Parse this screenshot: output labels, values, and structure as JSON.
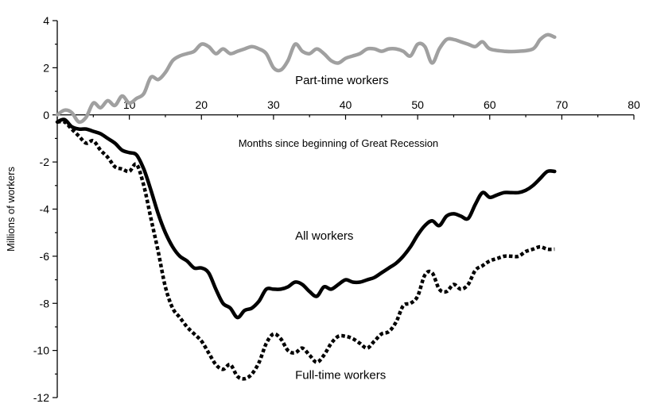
{
  "chart_data": {
    "type": "line",
    "title": "",
    "xlabel": "Months since beginning of Great Recession",
    "ylabel": "Millions of workers",
    "xlim": [
      0,
      80
    ],
    "ylim": [
      -12,
      4
    ],
    "x_ticks": [
      10,
      20,
      30,
      40,
      50,
      60,
      70,
      80
    ],
    "y_ticks": [
      4,
      2,
      0,
      -2,
      -4,
      -6,
      -8,
      -10,
      -12
    ],
    "grid": false,
    "legend": "none",
    "series": [
      {
        "name": "Part-time workers",
        "color": "#a0a0a0",
        "style": "solid",
        "label_at": [
          33,
          1.3
        ],
        "points": [
          [
            0,
            0
          ],
          [
            1,
            0.2
          ],
          [
            2,
            0.1
          ],
          [
            3,
            -0.3
          ],
          [
            4,
            -0.1
          ],
          [
            5,
            0.5
          ],
          [
            6,
            0.3
          ],
          [
            7,
            0.6
          ],
          [
            8,
            0.4
          ],
          [
            9,
            0.8
          ],
          [
            10,
            0.5
          ],
          [
            11,
            0.7
          ],
          [
            12,
            0.9
          ],
          [
            13,
            1.6
          ],
          [
            14,
            1.5
          ],
          [
            15,
            1.8
          ],
          [
            16,
            2.3
          ],
          [
            17,
            2.5
          ],
          [
            18,
            2.6
          ],
          [
            19,
            2.7
          ],
          [
            20,
            3.0
          ],
          [
            21,
            2.9
          ],
          [
            22,
            2.6
          ],
          [
            23,
            2.8
          ],
          [
            24,
            2.6
          ],
          [
            25,
            2.7
          ],
          [
            26,
            2.8
          ],
          [
            27,
            2.9
          ],
          [
            28,
            2.8
          ],
          [
            29,
            2.6
          ],
          [
            30,
            2.0
          ],
          [
            31,
            1.9
          ],
          [
            32,
            2.3
          ],
          [
            33,
            3.0
          ],
          [
            34,
            2.7
          ],
          [
            35,
            2.6
          ],
          [
            36,
            2.8
          ],
          [
            37,
            2.6
          ],
          [
            38,
            2.3
          ],
          [
            39,
            2.2
          ],
          [
            40,
            2.4
          ],
          [
            41,
            2.5
          ],
          [
            42,
            2.6
          ],
          [
            43,
            2.8
          ],
          [
            44,
            2.8
          ],
          [
            45,
            2.7
          ],
          [
            46,
            2.8
          ],
          [
            47,
            2.8
          ],
          [
            48,
            2.7
          ],
          [
            49,
            2.5
          ],
          [
            50,
            3.0
          ],
          [
            51,
            2.9
          ],
          [
            52,
            2.2
          ],
          [
            53,
            2.8
          ],
          [
            54,
            3.2
          ],
          [
            55,
            3.2
          ],
          [
            56,
            3.1
          ],
          [
            57,
            3.0
          ],
          [
            58,
            2.9
          ],
          [
            59,
            3.1
          ],
          [
            60,
            2.8
          ],
          [
            62,
            2.7
          ],
          [
            64,
            2.7
          ],
          [
            66,
            2.8
          ],
          [
            67,
            3.2
          ],
          [
            68,
            3.4
          ],
          [
            69,
            3.3
          ]
        ]
      },
      {
        "name": "All workers",
        "color": "#000000",
        "style": "solid",
        "label_at": [
          33,
          -5.3
        ],
        "points": [
          [
            0,
            -0.3
          ],
          [
            1,
            -0.2
          ],
          [
            2,
            -0.5
          ],
          [
            3,
            -0.6
          ],
          [
            4,
            -0.6
          ],
          [
            5,
            -0.7
          ],
          [
            6,
            -0.8
          ],
          [
            7,
            -1.0
          ],
          [
            8,
            -1.2
          ],
          [
            9,
            -1.5
          ],
          [
            10,
            -1.6
          ],
          [
            11,
            -1.7
          ],
          [
            12,
            -2.3
          ],
          [
            13,
            -3.2
          ],
          [
            14,
            -4.2
          ],
          [
            15,
            -5.0
          ],
          [
            16,
            -5.6
          ],
          [
            17,
            -6.0
          ],
          [
            18,
            -6.2
          ],
          [
            19,
            -6.5
          ],
          [
            20,
            -6.5
          ],
          [
            21,
            -6.7
          ],
          [
            22,
            -7.4
          ],
          [
            23,
            -8.0
          ],
          [
            24,
            -8.2
          ],
          [
            25,
            -8.6
          ],
          [
            26,
            -8.3
          ],
          [
            27,
            -8.2
          ],
          [
            28,
            -7.9
          ],
          [
            29,
            -7.4
          ],
          [
            30,
            -7.4
          ],
          [
            31,
            -7.4
          ],
          [
            32,
            -7.3
          ],
          [
            33,
            -7.1
          ],
          [
            34,
            -7.2
          ],
          [
            35,
            -7.5
          ],
          [
            36,
            -7.7
          ],
          [
            37,
            -7.3
          ],
          [
            38,
            -7.4
          ],
          [
            39,
            -7.2
          ],
          [
            40,
            -7.0
          ],
          [
            41,
            -7.1
          ],
          [
            42,
            -7.1
          ],
          [
            43,
            -7.0
          ],
          [
            44,
            -6.9
          ],
          [
            45,
            -6.7
          ],
          [
            46,
            -6.5
          ],
          [
            47,
            -6.3
          ],
          [
            48,
            -6.0
          ],
          [
            49,
            -5.6
          ],
          [
            50,
            -5.1
          ],
          [
            51,
            -4.7
          ],
          [
            52,
            -4.5
          ],
          [
            53,
            -4.7
          ],
          [
            54,
            -4.3
          ],
          [
            55,
            -4.2
          ],
          [
            56,
            -4.3
          ],
          [
            57,
            -4.4
          ],
          [
            58,
            -3.8
          ],
          [
            59,
            -3.3
          ],
          [
            60,
            -3.5
          ],
          [
            61,
            -3.4
          ],
          [
            62,
            -3.3
          ],
          [
            63,
            -3.3
          ],
          [
            64,
            -3.3
          ],
          [
            65,
            -3.2
          ],
          [
            66,
            -3.0
          ],
          [
            67,
            -2.7
          ],
          [
            68,
            -2.4
          ],
          [
            69,
            -2.4
          ]
        ]
      },
      {
        "name": "Full-time workers",
        "color": "#000000",
        "style": "dotted",
        "label_at": [
          33,
          -11.2
        ],
        "points": [
          [
            0,
            -0.3
          ],
          [
            1,
            -0.3
          ],
          [
            2,
            -0.6
          ],
          [
            3,
            -0.9
          ],
          [
            4,
            -1.2
          ],
          [
            5,
            -1.1
          ],
          [
            6,
            -1.5
          ],
          [
            7,
            -1.8
          ],
          [
            8,
            -2.2
          ],
          [
            9,
            -2.3
          ],
          [
            10,
            -2.4
          ],
          [
            11,
            -2.1
          ],
          [
            12,
            -3.0
          ],
          [
            13,
            -4.4
          ],
          [
            14,
            -5.8
          ],
          [
            15,
            -7.3
          ],
          [
            16,
            -8.2
          ],
          [
            17,
            -8.6
          ],
          [
            18,
            -9.0
          ],
          [
            19,
            -9.3
          ],
          [
            20,
            -9.6
          ],
          [
            21,
            -10.1
          ],
          [
            22,
            -10.6
          ],
          [
            23,
            -10.8
          ],
          [
            24,
            -10.6
          ],
          [
            25,
            -11.1
          ],
          [
            26,
            -11.2
          ],
          [
            27,
            -11.0
          ],
          [
            28,
            -10.5
          ],
          [
            29,
            -9.7
          ],
          [
            30,
            -9.3
          ],
          [
            31,
            -9.5
          ],
          [
            32,
            -10.0
          ],
          [
            33,
            -10.1
          ],
          [
            34,
            -9.9
          ],
          [
            35,
            -10.2
          ],
          [
            36,
            -10.5
          ],
          [
            37,
            -10.2
          ],
          [
            38,
            -9.7
          ],
          [
            39,
            -9.4
          ],
          [
            40,
            -9.4
          ],
          [
            41,
            -9.5
          ],
          [
            42,
            -9.7
          ],
          [
            43,
            -9.9
          ],
          [
            44,
            -9.6
          ],
          [
            45,
            -9.3
          ],
          [
            46,
            -9.2
          ],
          [
            47,
            -8.8
          ],
          [
            48,
            -8.1
          ],
          [
            49,
            -8.0
          ],
          [
            50,
            -7.7
          ],
          [
            51,
            -6.8
          ],
          [
            52,
            -6.7
          ],
          [
            53,
            -7.4
          ],
          [
            54,
            -7.5
          ],
          [
            55,
            -7.2
          ],
          [
            56,
            -7.4
          ],
          [
            57,
            -7.2
          ],
          [
            58,
            -6.6
          ],
          [
            59,
            -6.4
          ],
          [
            60,
            -6.2
          ],
          [
            61,
            -6.1
          ],
          [
            62,
            -6.0
          ],
          [
            63,
            -6.0
          ],
          [
            64,
            -6.0
          ],
          [
            65,
            -5.8
          ],
          [
            66,
            -5.7
          ],
          [
            67,
            -5.6
          ],
          [
            68,
            -5.7
          ],
          [
            69,
            -5.7
          ]
        ]
      }
    ]
  }
}
